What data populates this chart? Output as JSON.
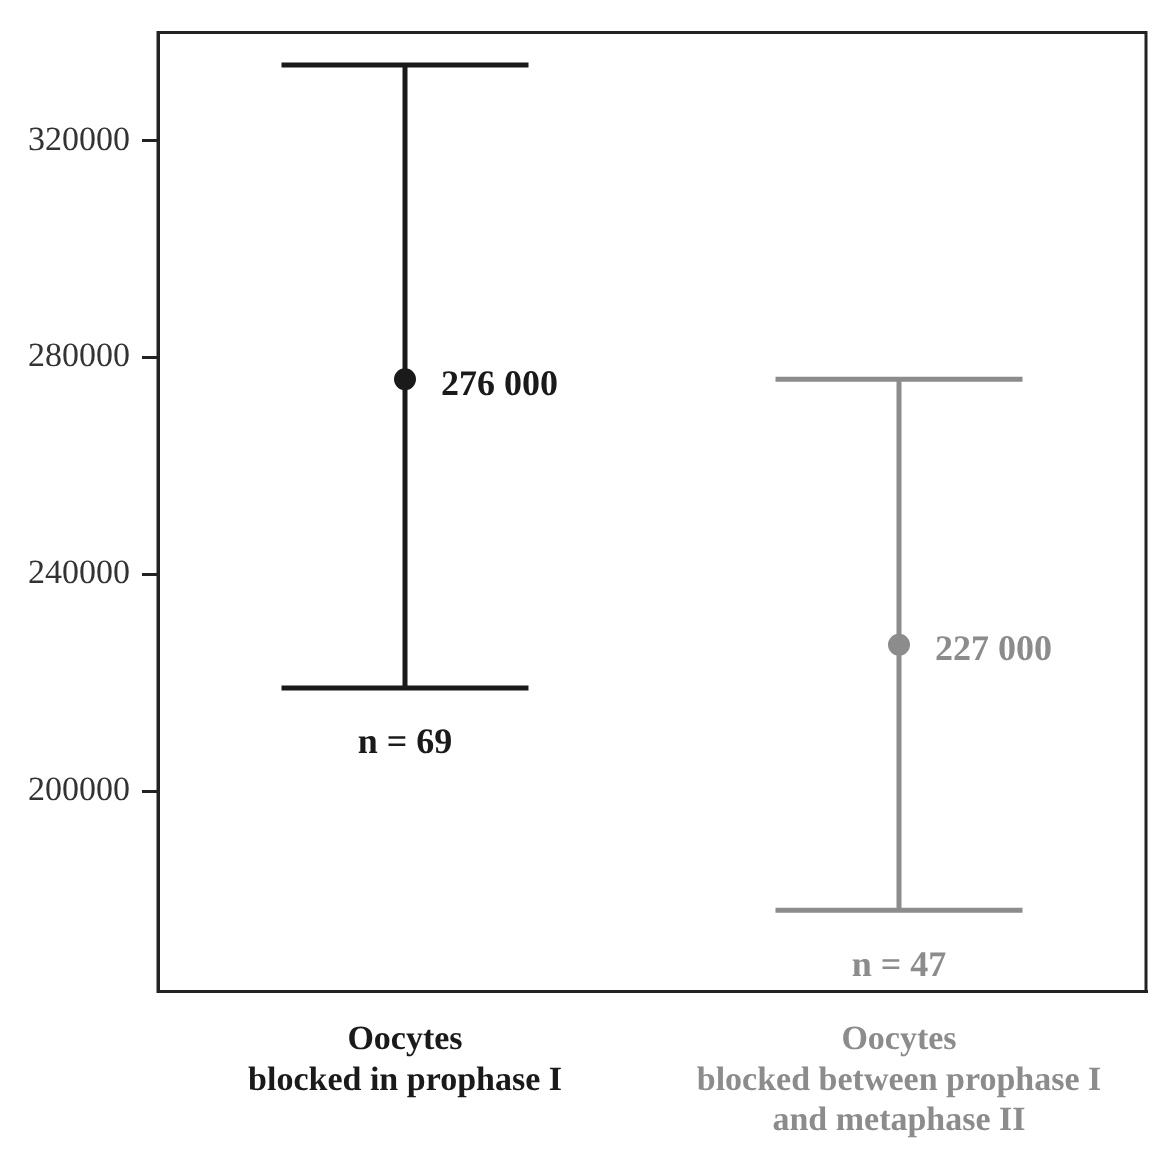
{
  "chart_data": {
    "type": "scatter",
    "categories": [
      "Oocytes\nblocked in prophase I",
      "Oocytes\nblocked between prophase I\nand metaphase II"
    ],
    "series": [
      {
        "color": "#1a1a1a",
        "values": [
          276000,
          null
        ],
        "errors": [
          [
            219000,
            334000
          ],
          null
        ],
        "value_labels": [
          "276 000",
          null
        ]
      },
      {
        "color": "#8c8c8c",
        "values": [
          null,
          227000
        ],
        "errors": [
          null,
          [
            178000,
            276000
          ]
        ],
        "value_labels": [
          null,
          "227 000"
        ]
      }
    ],
    "annotations": [
      "n = 69",
      "n = 47"
    ],
    "ylim": [
      163000,
      340000
    ],
    "yticks": [
      200000,
      240000,
      280000,
      320000
    ],
    "grid": false,
    "legend": false,
    "marker": "circle"
  }
}
